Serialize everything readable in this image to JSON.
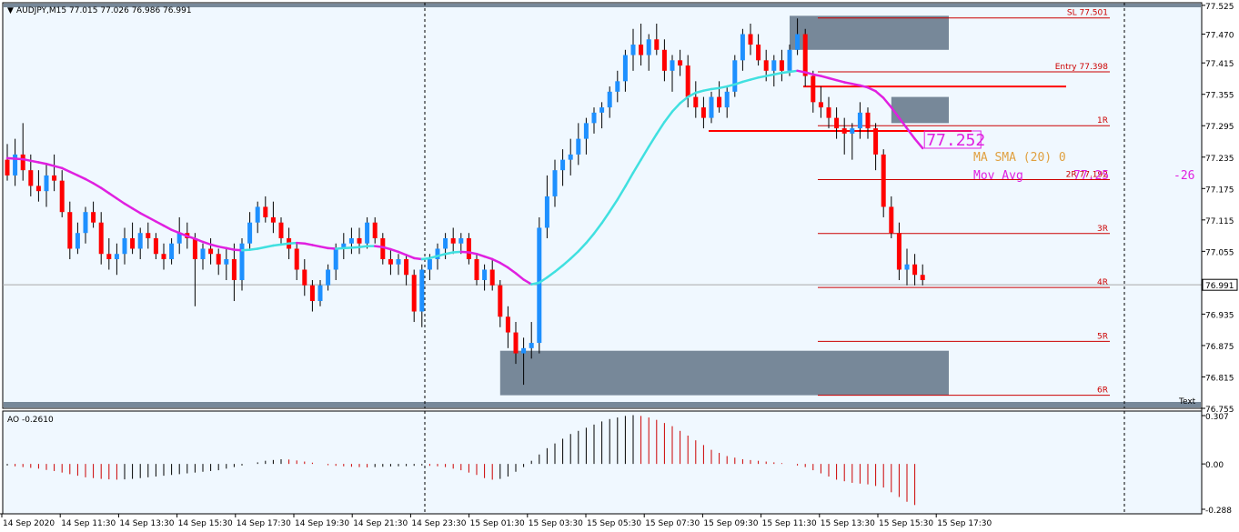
{
  "header": {
    "symbol": "AUDJPY,M15",
    "ohlc": "77.015 77.026 76.986 76.991"
  },
  "price_axis": {
    "ticks": [
      "77.525",
      "77.470",
      "77.415",
      "77.355",
      "77.295",
      "77.235",
      "77.175",
      "77.115",
      "77.055",
      "76.991",
      "76.935",
      "76.875",
      "76.815",
      "76.755"
    ],
    "current": "76.991"
  },
  "time_axis": {
    "ticks": [
      "14 Sep 2020",
      "14 Sep 11:30",
      "14 Sep 13:30",
      "14 Sep 15:30",
      "14 Sep 17:30",
      "14 Sep 19:30",
      "14 Sep 21:30",
      "14 Sep 23:30",
      "15 Sep 01:30",
      "15 Sep 03:30",
      "15 Sep 05:30",
      "15 Sep 07:30",
      "15 Sep 09:30",
      "15 Sep 11:30",
      "15 Sep 13:30",
      "15 Sep 15:30",
      "15 Sep 17:30"
    ]
  },
  "levels": [
    {
      "label": "SL 77.501",
      "price": 77.501
    },
    {
      "label": "Entry 77.398",
      "price": 77.398
    },
    {
      "label": "1R",
      "price": 77.295
    },
    {
      "label": "2R 77.192",
      "price": 77.192
    },
    {
      "label": "3R",
      "price": 77.089
    },
    {
      "label": "4R",
      "price": 76.986
    },
    {
      "label": "5R",
      "price": 76.883
    },
    {
      "label": "6R",
      "price": 76.78
    }
  ],
  "ma_label": {
    "price_box": "77.252",
    "line1": "MA SMA (20) 0",
    "line2_name": "Mov Avg",
    "line2_value": "77.25",
    "line2_right": "-26"
  },
  "oscillator": {
    "title": "AO -0.2610",
    "ticks": [
      "0.307",
      "0.00",
      "-0.288"
    ]
  },
  "text_marker": "Text",
  "colors": {
    "bull": "#1e90ff",
    "bear": "#ff0000",
    "ma_up": "#40e0e0",
    "ma_down": "#e020e0",
    "box": "#778899",
    "level": "#cc0000"
  },
  "chart_data": {
    "type": "candlestick",
    "symbol": "AUDJPY",
    "timeframe": "M15",
    "ylim": [
      76.755,
      77.53
    ],
    "candles": [
      [
        77.23,
        77.26,
        77.19,
        77.2
      ],
      [
        77.2,
        77.27,
        77.18,
        77.24
      ],
      [
        77.24,
        77.3,
        77.19,
        77.21
      ],
      [
        77.21,
        77.24,
        77.16,
        77.18
      ],
      [
        77.18,
        77.21,
        77.15,
        77.17
      ],
      [
        77.17,
        77.22,
        77.14,
        77.2
      ],
      [
        77.2,
        77.24,
        77.17,
        77.19
      ],
      [
        77.19,
        77.21,
        77.12,
        77.13
      ],
      [
        77.13,
        77.15,
        77.04,
        77.06
      ],
      [
        77.06,
        77.11,
        77.05,
        77.09
      ],
      [
        77.09,
        77.14,
        77.07,
        77.13
      ],
      [
        77.13,
        77.15,
        77.1,
        77.11
      ],
      [
        77.11,
        77.13,
        77.03,
        77.05
      ],
      [
        77.05,
        77.08,
        77.02,
        77.04
      ],
      [
        77.04,
        77.07,
        77.01,
        77.05
      ],
      [
        77.05,
        77.1,
        77.03,
        77.08
      ],
      [
        77.08,
        77.11,
        77.05,
        77.06
      ],
      [
        77.06,
        77.1,
        77.04,
        77.09
      ],
      [
        77.09,
        77.11,
        77.06,
        77.08
      ],
      [
        77.08,
        77.09,
        77.04,
        77.05
      ],
      [
        77.05,
        77.07,
        77.02,
        77.04
      ],
      [
        77.04,
        77.08,
        77.03,
        77.07
      ],
      [
        77.07,
        77.12,
        77.05,
        77.09
      ],
      [
        77.09,
        77.11,
        77.06,
        77.08
      ],
      [
        77.08,
        77.09,
        76.95,
        77.04
      ],
      [
        77.04,
        77.07,
        77.02,
        77.06
      ],
      [
        77.06,
        77.08,
        77.03,
        77.05
      ],
      [
        77.05,
        77.06,
        77.01,
        77.03
      ],
      [
        77.03,
        77.06,
        77.0,
        77.04
      ],
      [
        77.04,
        77.07,
        76.96,
        77.0
      ],
      [
        77.0,
        77.08,
        76.98,
        77.07
      ],
      [
        77.07,
        77.13,
        77.06,
        77.11
      ],
      [
        77.11,
        77.15,
        77.09,
        77.14
      ],
      [
        77.14,
        77.16,
        77.11,
        77.12
      ],
      [
        77.12,
        77.15,
        77.09,
        77.11
      ],
      [
        77.11,
        77.12,
        77.07,
        77.08
      ],
      [
        77.08,
        77.1,
        77.04,
        77.06
      ],
      [
        77.06,
        77.07,
        77.0,
        77.02
      ],
      [
        77.02,
        77.04,
        76.97,
        76.99
      ],
      [
        76.99,
        77.0,
        76.94,
        76.96
      ],
      [
        76.96,
        77.0,
        76.95,
        76.99
      ],
      [
        76.99,
        77.03,
        76.98,
        77.02
      ],
      [
        77.02,
        77.07,
        77.0,
        77.06
      ],
      [
        77.06,
        77.09,
        77.04,
        77.07
      ],
      [
        77.07,
        77.1,
        77.05,
        77.08
      ],
      [
        77.08,
        77.1,
        77.05,
        77.07
      ],
      [
        77.07,
        77.12,
        77.06,
        77.11
      ],
      [
        77.11,
        77.12,
        77.07,
        77.08
      ],
      [
        77.08,
        77.09,
        77.03,
        77.04
      ],
      [
        77.04,
        77.06,
        77.01,
        77.03
      ],
      [
        77.03,
        77.05,
        77.01,
        77.04
      ],
      [
        77.04,
        77.05,
        76.99,
        77.01
      ],
      [
        77.01,
        77.02,
        76.92,
        76.94
      ],
      [
        76.94,
        77.03,
        76.91,
        77.02
      ],
      [
        77.02,
        77.05,
        77.0,
        77.04
      ],
      [
        77.04,
        77.07,
        77.02,
        77.06
      ],
      [
        77.06,
        77.09,
        77.04,
        77.08
      ],
      [
        77.08,
        77.1,
        77.05,
        77.07
      ],
      [
        77.07,
        77.09,
        77.05,
        77.08
      ],
      [
        77.08,
        77.09,
        77.03,
        77.04
      ],
      [
        77.04,
        77.05,
        76.99,
        77.0
      ],
      [
        77.0,
        77.03,
        76.98,
        77.02
      ],
      [
        77.02,
        77.04,
        76.98,
        76.99
      ],
      [
        76.99,
        77.0,
        76.91,
        76.93
      ],
      [
        76.93,
        76.95,
        76.87,
        76.9
      ],
      [
        76.9,
        76.92,
        76.84,
        76.86
      ],
      [
        76.86,
        76.89,
        76.8,
        76.87
      ],
      [
        76.87,
        76.92,
        76.85,
        76.88
      ],
      [
        76.88,
        77.12,
        76.86,
        77.1
      ],
      [
        77.1,
        77.2,
        77.08,
        77.16
      ],
      [
        77.16,
        77.23,
        77.14,
        77.21
      ],
      [
        77.21,
        77.25,
        77.18,
        77.23
      ],
      [
        77.23,
        77.27,
        77.2,
        77.24
      ],
      [
        77.24,
        77.3,
        77.22,
        77.27
      ],
      [
        77.27,
        77.31,
        77.24,
        77.3
      ],
      [
        77.3,
        77.33,
        77.28,
        77.32
      ],
      [
        77.32,
        77.34,
        77.29,
        77.33
      ],
      [
        77.33,
        77.37,
        77.31,
        77.36
      ],
      [
        77.36,
        77.4,
        77.34,
        77.38
      ],
      [
        77.38,
        77.44,
        77.36,
        77.43
      ],
      [
        77.43,
        77.48,
        77.4,
        77.45
      ],
      [
        77.45,
        77.49,
        77.41,
        77.43
      ],
      [
        77.43,
        77.47,
        77.4,
        77.46
      ],
      [
        77.46,
        77.49,
        77.43,
        77.44
      ],
      [
        77.44,
        77.46,
        77.38,
        77.4
      ],
      [
        77.4,
        77.43,
        77.36,
        77.42
      ],
      [
        77.42,
        77.44,
        77.39,
        77.41
      ],
      [
        77.41,
        77.43,
        77.33,
        77.35
      ],
      [
        77.35,
        77.38,
        77.31,
        77.33
      ],
      [
        77.33,
        77.35,
        77.29,
        77.31
      ],
      [
        77.31,
        77.36,
        77.3,
        77.35
      ],
      [
        77.35,
        77.38,
        77.32,
        77.33
      ],
      [
        77.33,
        77.37,
        77.31,
        77.36
      ],
      [
        77.36,
        77.43,
        77.35,
        77.42
      ],
      [
        77.42,
        77.48,
        77.4,
        77.47
      ],
      [
        77.47,
        77.49,
        77.43,
        77.45
      ],
      [
        77.45,
        77.47,
        77.41,
        77.42
      ],
      [
        77.42,
        77.44,
        77.38,
        77.4
      ],
      [
        77.4,
        77.43,
        77.37,
        77.42
      ],
      [
        77.42,
        77.44,
        77.38,
        77.4
      ],
      [
        77.4,
        77.45,
        77.39,
        77.44
      ],
      [
        77.44,
        77.5,
        77.43,
        77.47
      ],
      [
        77.47,
        77.48,
        77.37,
        77.39
      ],
      [
        77.39,
        77.4,
        77.32,
        77.34
      ],
      [
        77.34,
        77.37,
        77.31,
        77.33
      ],
      [
        77.33,
        77.35,
        77.29,
        77.31
      ],
      [
        77.31,
        77.33,
        77.27,
        77.29
      ],
      [
        77.29,
        77.31,
        77.24,
        77.28
      ],
      [
        77.28,
        77.3,
        77.23,
        77.29
      ],
      [
        77.29,
        77.34,
        77.27,
        77.32
      ],
      [
        77.32,
        77.33,
        77.27,
        77.29
      ],
      [
        77.29,
        77.3,
        77.21,
        77.24
      ],
      [
        77.24,
        77.25,
        77.12,
        77.14
      ],
      [
        77.14,
        77.16,
        77.08,
        77.09
      ],
      [
        77.09,
        77.11,
        77.0,
        77.02
      ],
      [
        77.02,
        77.06,
        76.99,
        77.03
      ],
      [
        77.03,
        77.05,
        76.99,
        77.01
      ],
      [
        77.01,
        77.03,
        76.99,
        77.0
      ]
    ],
    "ma": [
      77.233,
      77.232,
      77.231,
      77.228,
      77.225,
      77.222,
      77.218,
      77.214,
      77.207,
      77.2,
      77.193,
      77.185,
      77.176,
      77.166,
      77.156,
      77.146,
      77.137,
      77.128,
      77.12,
      77.112,
      77.104,
      77.096,
      77.09,
      77.084,
      77.079,
      77.073,
      77.068,
      77.064,
      77.061,
      77.058,
      77.057,
      77.058,
      77.06,
      77.063,
      77.066,
      77.068,
      77.07,
      77.071,
      77.07,
      77.067,
      77.064,
      77.061,
      77.06,
      77.061,
      77.062,
      77.063,
      77.065,
      77.065,
      77.063,
      77.059,
      77.054,
      77.048,
      77.042,
      77.04,
      77.042,
      77.046,
      77.05,
      77.053,
      77.054,
      77.053,
      77.05,
      77.045,
      77.04,
      77.033,
      77.024,
      77.013,
      77.001,
      76.992,
      76.995,
      77.005,
      77.016,
      77.028,
      77.041,
      77.055,
      77.071,
      77.089,
      77.109,
      77.131,
      77.154,
      77.179,
      77.205,
      77.23,
      77.255,
      77.279,
      77.302,
      77.322,
      77.338,
      77.35,
      77.358,
      77.362,
      77.365,
      77.367,
      77.37,
      77.374,
      77.379,
      77.383,
      77.387,
      77.39,
      77.393,
      77.396,
      77.398,
      77.4,
      77.397,
      77.393,
      77.39,
      77.386,
      77.382,
      77.378,
      77.375,
      77.372,
      77.368,
      77.361,
      77.348,
      77.33,
      77.31,
      77.29,
      77.27,
      77.252
    ],
    "levels": [
      {
        "name": "SL",
        "value": 77.501
      },
      {
        "name": "Entry",
        "value": 77.398
      },
      {
        "name": "1R",
        "value": 77.295
      },
      {
        "name": "2R",
        "value": 77.192
      },
      {
        "name": "3R",
        "value": 77.089
      },
      {
        "name": "4R",
        "value": 76.986
      },
      {
        "name": "5R",
        "value": 76.883
      },
      {
        "name": "6R",
        "value": 76.78
      }
    ],
    "horizontal_lines": [
      77.37,
      77.285,
      76.991
    ],
    "zones": [
      {
        "from": 77.44,
        "to": 77.505,
        "start_index": 100,
        "end_index": 120
      },
      {
        "from": 77.3,
        "to": 77.35,
        "start_index": 113,
        "end_index": 120
      },
      {
        "from": 76.78,
        "to": 76.865,
        "start_index": 63,
        "end_index": 120
      }
    ],
    "ao": [
      -0.01,
      -0.015,
      -0.02,
      -0.025,
      -0.03,
      -0.038,
      -0.045,
      -0.055,
      -0.065,
      -0.075,
      -0.085,
      -0.09,
      -0.095,
      -0.098,
      -0.1,
      -0.098,
      -0.095,
      -0.09,
      -0.085,
      -0.08,
      -0.075,
      -0.07,
      -0.065,
      -0.06,
      -0.055,
      -0.05,
      -0.045,
      -0.04,
      -0.03,
      -0.02,
      -0.01,
      0.0,
      0.01,
      0.02,
      0.025,
      0.03,
      0.028,
      0.022,
      0.015,
      0.008,
      0.0,
      -0.008,
      -0.012,
      -0.015,
      -0.018,
      -0.02,
      -0.022,
      -0.02,
      -0.018,
      -0.016,
      -0.015,
      -0.014,
      -0.012,
      -0.01,
      -0.012,
      -0.015,
      -0.02,
      -0.03,
      -0.04,
      -0.055,
      -0.07,
      -0.09,
      -0.1,
      -0.095,
      -0.08,
      -0.05,
      -0.02,
      0.02,
      0.06,
      0.1,
      0.13,
      0.16,
      0.19,
      0.21,
      0.23,
      0.25,
      0.27,
      0.285,
      0.295,
      0.305,
      0.31,
      0.305,
      0.295,
      0.28,
      0.26,
      0.24,
      0.21,
      0.18,
      0.15,
      0.12,
      0.09,
      0.07,
      0.05,
      0.04,
      0.03,
      0.025,
      0.02,
      0.015,
      0.01,
      0.005,
      0.0,
      -0.01,
      -0.02,
      -0.04,
      -0.06,
      -0.08,
      -0.1,
      -0.11,
      -0.12,
      -0.125,
      -0.13,
      -0.14,
      -0.15,
      -0.18,
      -0.21,
      -0.24,
      -0.261
    ]
  }
}
